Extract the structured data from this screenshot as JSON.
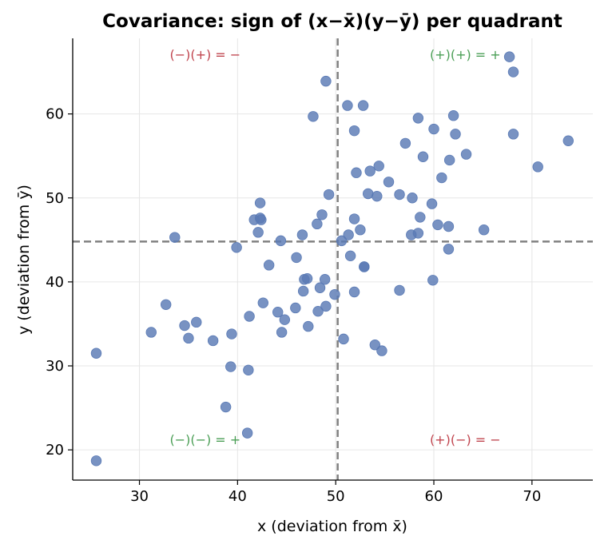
{
  "chart_data": {
    "type": "scatter",
    "title": "Covariance: sign of (x−x̄)(y−ȳ) per quadrant",
    "xlabel": "x  (deviation from x̄)",
    "ylabel": "y  (deviation from ȳ)",
    "xlim": [
      23.2,
      76.2
    ],
    "ylim": [
      16.4,
      69.0
    ],
    "xticks": [
      30,
      40,
      50,
      60,
      70
    ],
    "yticks": [
      20,
      30,
      40,
      50,
      60
    ],
    "grid": true,
    "mean_x": 50.2,
    "mean_y": 44.8,
    "point_color": "#5a7ab5",
    "mean_line_color": "#808080",
    "quadrant_labels": [
      {
        "text": "(−)(+) = −",
        "quadrant": "top-left",
        "color": "#c0444e"
      },
      {
        "text": "(+)(+) = +",
        "quadrant": "top-right",
        "color": "#4a9e55"
      },
      {
        "text": "(−)(−) = +",
        "quadrant": "bottom-left",
        "color": "#4a9e55"
      },
      {
        "text": "(+)(−) = −",
        "quadrant": "bottom-right",
        "color": "#c0444e"
      }
    ],
    "points": [
      [
        25.6,
        31.5
      ],
      [
        25.6,
        18.7
      ],
      [
        31.2,
        34.0
      ],
      [
        32.7,
        37.3
      ],
      [
        33.6,
        45.3
      ],
      [
        34.6,
        34.8
      ],
      [
        35.0,
        33.3
      ],
      [
        35.8,
        35.2
      ],
      [
        37.5,
        33.0
      ],
      [
        38.8,
        25.1
      ],
      [
        39.3,
        29.9
      ],
      [
        39.4,
        33.8
      ],
      [
        39.9,
        44.1
      ],
      [
        41.0,
        22.0
      ],
      [
        41.1,
        29.5
      ],
      [
        41.2,
        35.9
      ],
      [
        41.7,
        47.4
      ],
      [
        42.1,
        45.9
      ],
      [
        42.3,
        49.4
      ],
      [
        42.3,
        47.6
      ],
      [
        42.4,
        47.4
      ],
      [
        42.6,
        37.5
      ],
      [
        43.2,
        42.0
      ],
      [
        44.1,
        36.4
      ],
      [
        44.4,
        44.9
      ],
      [
        44.5,
        34.0
      ],
      [
        44.8,
        35.5
      ],
      [
        45.9,
        36.9
      ],
      [
        46.0,
        42.9
      ],
      [
        46.6,
        45.6
      ],
      [
        46.7,
        38.9
      ],
      [
        46.8,
        40.3
      ],
      [
        47.1,
        40.4
      ],
      [
        47.2,
        34.7
      ],
      [
        47.7,
        59.7
      ],
      [
        48.1,
        46.9
      ],
      [
        48.2,
        36.5
      ],
      [
        48.4,
        39.3
      ],
      [
        48.6,
        48.0
      ],
      [
        48.9,
        40.3
      ],
      [
        49.0,
        63.9
      ],
      [
        49.0,
        37.1
      ],
      [
        49.3,
        50.4
      ],
      [
        49.9,
        38.5
      ],
      [
        50.6,
        44.9
      ],
      [
        50.8,
        33.2
      ],
      [
        51.2,
        61.0
      ],
      [
        51.3,
        45.6
      ],
      [
        51.5,
        43.1
      ],
      [
        51.9,
        38.8
      ],
      [
        51.9,
        58.0
      ],
      [
        51.9,
        47.5
      ],
      [
        52.1,
        53.0
      ],
      [
        52.5,
        46.2
      ],
      [
        52.8,
        61.0
      ],
      [
        52.9,
        41.8
      ],
      [
        52.9,
        41.8
      ],
      [
        53.3,
        50.5
      ],
      [
        53.5,
        53.2
      ],
      [
        54.0,
        32.5
      ],
      [
        54.2,
        50.2
      ],
      [
        54.4,
        53.8
      ],
      [
        54.7,
        31.8
      ],
      [
        55.4,
        51.9
      ],
      [
        56.5,
        39.0
      ],
      [
        56.5,
        50.4
      ],
      [
        57.1,
        56.5
      ],
      [
        57.7,
        45.6
      ],
      [
        57.8,
        50.0
      ],
      [
        58.4,
        45.8
      ],
      [
        58.4,
        59.5
      ],
      [
        58.6,
        47.7
      ],
      [
        58.9,
        54.9
      ],
      [
        59.8,
        49.3
      ],
      [
        59.9,
        40.2
      ],
      [
        60.0,
        58.2
      ],
      [
        60.4,
        46.8
      ],
      [
        60.8,
        52.4
      ],
      [
        61.5,
        46.6
      ],
      [
        61.5,
        43.9
      ],
      [
        61.6,
        54.5
      ],
      [
        62.0,
        59.8
      ],
      [
        62.2,
        57.6
      ],
      [
        63.3,
        55.2
      ],
      [
        65.1,
        46.2
      ],
      [
        67.7,
        66.8
      ],
      [
        68.1,
        65.0
      ],
      [
        68.1,
        57.6
      ],
      [
        70.6,
        53.7
      ],
      [
        73.7,
        56.8
      ]
    ]
  }
}
